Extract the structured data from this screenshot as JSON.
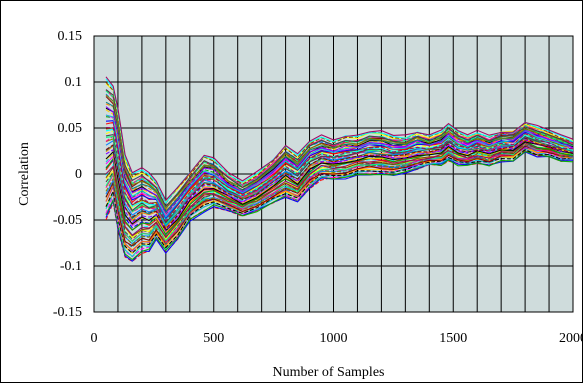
{
  "chart_data": {
    "type": "line",
    "title": "",
    "xlabel": "Number of Samples",
    "ylabel": "Correlation",
    "xlim": [
      0,
      2000
    ],
    "ylim": [
      -0.15,
      0.15
    ],
    "x_ticks": [
      0,
      500,
      1000,
      1500,
      2000
    ],
    "y_ticks": [
      -0.15,
      -0.1,
      -0.05,
      0,
      0.05,
      0.1,
      0.15
    ],
    "x_tick_labels": [
      "0",
      "500",
      "1000",
      "1500",
      "2000"
    ],
    "y_tick_labels": [
      "-0.15",
      "-0.1",
      "-0.05",
      "0",
      "0.05",
      "0.1",
      "0.15"
    ],
    "x_grid_step": 100,
    "grid": true,
    "legend": "none",
    "background_color": "#cfdcdc",
    "series_count": 60,
    "envelope": {
      "x": [
        50,
        80,
        100,
        130,
        160,
        200,
        230,
        260,
        300,
        350,
        400,
        460,
        500,
        560,
        620,
        680,
        750,
        800,
        850,
        900,
        950,
        1000,
        1050,
        1100,
        1150,
        1200,
        1250,
        1300,
        1350,
        1400,
        1450,
        1480,
        1520,
        1560,
        1600,
        1650,
        1700,
        1750,
        1800,
        1850,
        1900,
        1950,
        2000
      ],
      "upper": [
        0.105,
        0.095,
        0.07,
        0.02,
        0.0,
        0.005,
        0.0,
        -0.01,
        -0.03,
        -0.015,
        0.0,
        0.02,
        0.015,
        0.0,
        -0.01,
        0.0,
        0.015,
        0.03,
        0.02,
        0.035,
        0.04,
        0.035,
        0.04,
        0.04,
        0.045,
        0.045,
        0.04,
        0.04,
        0.045,
        0.04,
        0.045,
        0.053,
        0.045,
        0.04,
        0.045,
        0.04,
        0.045,
        0.045,
        0.055,
        0.05,
        0.045,
        0.04,
        0.035
      ],
      "lower": [
        -0.05,
        -0.03,
        -0.06,
        -0.09,
        -0.095,
        -0.085,
        -0.085,
        -0.07,
        -0.085,
        -0.07,
        -0.05,
        -0.04,
        -0.035,
        -0.04,
        -0.045,
        -0.04,
        -0.03,
        -0.025,
        -0.03,
        -0.015,
        -0.005,
        -0.005,
        -0.005,
        0.0,
        0.0,
        0.0,
        0.0,
        0.002,
        0.005,
        0.01,
        0.01,
        0.015,
        0.01,
        0.01,
        0.012,
        0.01,
        0.015,
        0.015,
        0.025,
        0.02,
        0.02,
        0.015,
        0.015
      ]
    }
  }
}
